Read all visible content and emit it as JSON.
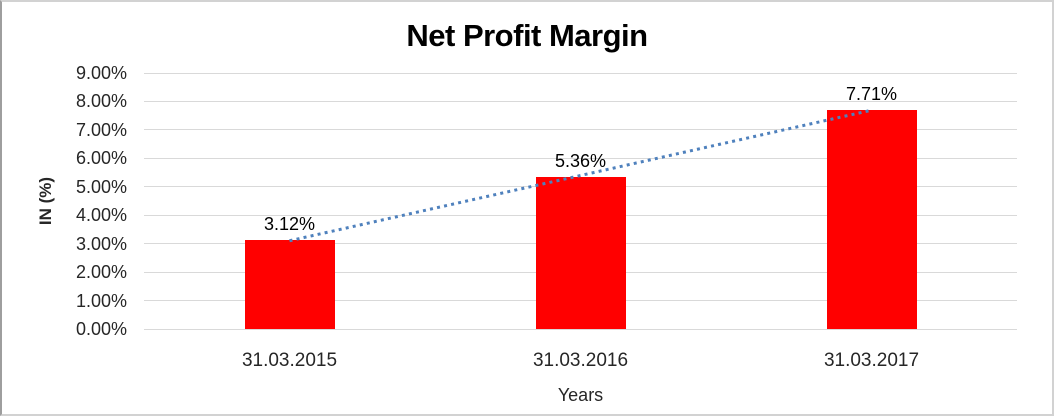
{
  "chart_data": {
    "type": "bar",
    "title": "Net Profit Margin",
    "xlabel": "Years",
    "ylabel": "IN (%)",
    "categories": [
      "31.03.2015",
      "31.03.2016",
      "31.03.2017"
    ],
    "values": [
      3.12,
      5.36,
      7.71
    ],
    "value_labels": [
      "3.12%",
      "5.36%",
      "7.71%"
    ],
    "ylim": [
      0,
      9
    ],
    "ytick_labels": [
      "0.00%",
      "1.00%",
      "2.00%",
      "3.00%",
      "4.00%",
      "5.00%",
      "6.00%",
      "7.00%",
      "8.00%",
      "9.00%"
    ],
    "grid": true,
    "legend": false,
    "trendline": "linear-dotted",
    "colors": {
      "bar": "#ff0000",
      "trendline": "#4f81bd",
      "gridline": "#d9d9d9",
      "text": "#262626",
      "title": "#000000"
    }
  }
}
